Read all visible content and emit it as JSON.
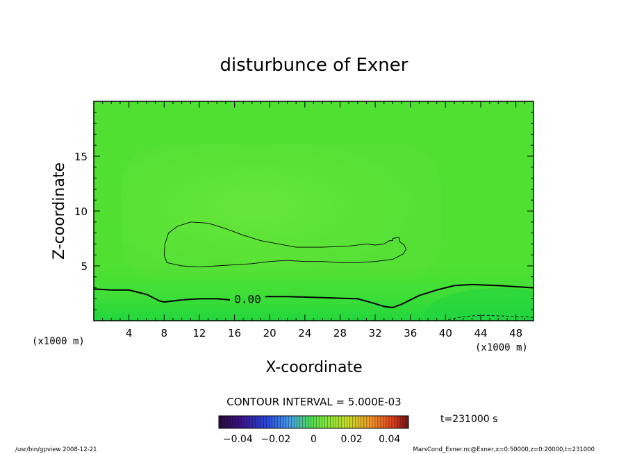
{
  "chart_data": {
    "type": "contour",
    "title": "disturbunce of Exner",
    "xlabel": "X-coordinate",
    "ylabel": "Z-coordinate",
    "x_unit": "(x1000 m)",
    "y_unit": "(x1000 m)",
    "xlim": [
      0,
      50
    ],
    "ylim": [
      0,
      20
    ],
    "x_ticks": [
      4,
      8,
      12,
      16,
      20,
      24,
      28,
      32,
      36,
      40,
      44,
      48
    ],
    "y_ticks": [
      5,
      10,
      15
    ],
    "contour_interval": "CONTOUR INTERVAL = 5.000E-03",
    "contour_labels": [
      {
        "text": "0.00",
        "x": 17.5,
        "z": 2.0
      }
    ],
    "time_label": "t=231000 s",
    "colorbar": {
      "range": [
        -0.05,
        0.05
      ],
      "tick_labels": [
        "−0.04",
        "−0.02",
        "0",
        "0.02",
        "0.04"
      ],
      "tick_values": [
        -0.04,
        -0.02,
        0,
        0.02,
        0.04
      ]
    },
    "contours": [
      {
        "level": 0.005,
        "style": "thin",
        "points": [
          [
            8.1,
            7.0
          ],
          [
            8.5,
            8.0
          ],
          [
            9.5,
            8.6
          ],
          [
            11,
            9.0
          ],
          [
            13,
            8.9
          ],
          [
            15,
            8.4
          ],
          [
            17,
            7.8
          ],
          [
            19,
            7.3
          ],
          [
            21,
            7.0
          ],
          [
            23,
            6.7
          ],
          [
            26,
            6.7
          ],
          [
            29,
            6.8
          ],
          [
            31,
            7.0
          ],
          [
            32,
            6.9
          ],
          [
            33,
            7.0
          ],
          [
            33.6,
            7.3
          ],
          [
            34,
            7.3
          ],
          [
            34,
            7.5
          ],
          [
            34.7,
            7.6
          ],
          [
            34.8,
            7.2
          ],
          [
            35.3,
            6.9
          ],
          [
            35.5,
            6.5
          ],
          [
            35.2,
            6.1
          ],
          [
            34,
            5.6
          ],
          [
            32,
            5.4
          ],
          [
            30,
            5.3
          ],
          [
            28,
            5.3
          ],
          [
            26,
            5.4
          ],
          [
            24,
            5.4
          ],
          [
            22,
            5.5
          ],
          [
            20,
            5.4
          ],
          [
            18,
            5.2
          ],
          [
            16,
            5.1
          ],
          [
            14,
            5.0
          ],
          [
            12,
            4.9
          ],
          [
            10,
            5.0
          ],
          [
            8.3,
            5.3
          ],
          [
            8.0,
            6.0
          ],
          [
            8.1,
            7.0
          ]
        ]
      },
      {
        "level": 0.0,
        "style": "thick",
        "points": [
          [
            0,
            2.9
          ],
          [
            2,
            2.8
          ],
          [
            4,
            2.8
          ],
          [
            6,
            2.4
          ],
          [
            7.5,
            1.8
          ],
          [
            8,
            1.7
          ],
          [
            10,
            1.9
          ],
          [
            12,
            2.0
          ],
          [
            14,
            2.0
          ],
          [
            15.5,
            1.9
          ]
        ]
      },
      {
        "level": 0.0,
        "style": "thick",
        "points": [
          [
            19.5,
            2.2
          ],
          [
            22,
            2.2
          ],
          [
            26,
            2.1
          ],
          [
            30,
            2.0
          ],
          [
            31.8,
            1.6
          ],
          [
            33,
            1.3
          ],
          [
            34,
            1.2
          ],
          [
            35,
            1.5
          ],
          [
            37,
            2.3
          ],
          [
            39,
            2.8
          ],
          [
            41,
            3.2
          ],
          [
            43,
            3.3
          ],
          [
            46,
            3.2
          ],
          [
            48,
            3.1
          ],
          [
            50,
            3.0
          ]
        ]
      },
      {
        "level": -0.005,
        "style": "dashed",
        "points": [
          [
            40.3,
            0.1
          ],
          [
            41.5,
            0.3
          ],
          [
            43,
            0.45
          ],
          [
            44.5,
            0.5
          ],
          [
            46,
            0.45
          ],
          [
            47.5,
            0.4
          ],
          [
            49.3,
            0.35
          ],
          [
            50,
            0.3
          ]
        ]
      }
    ]
  },
  "footer": {
    "left": "/usr/bin/gpview   2008-12-21",
    "right": "MarsCond_Exner.nc@Exner,x=0:50000,z=0:20000,t=231000"
  }
}
